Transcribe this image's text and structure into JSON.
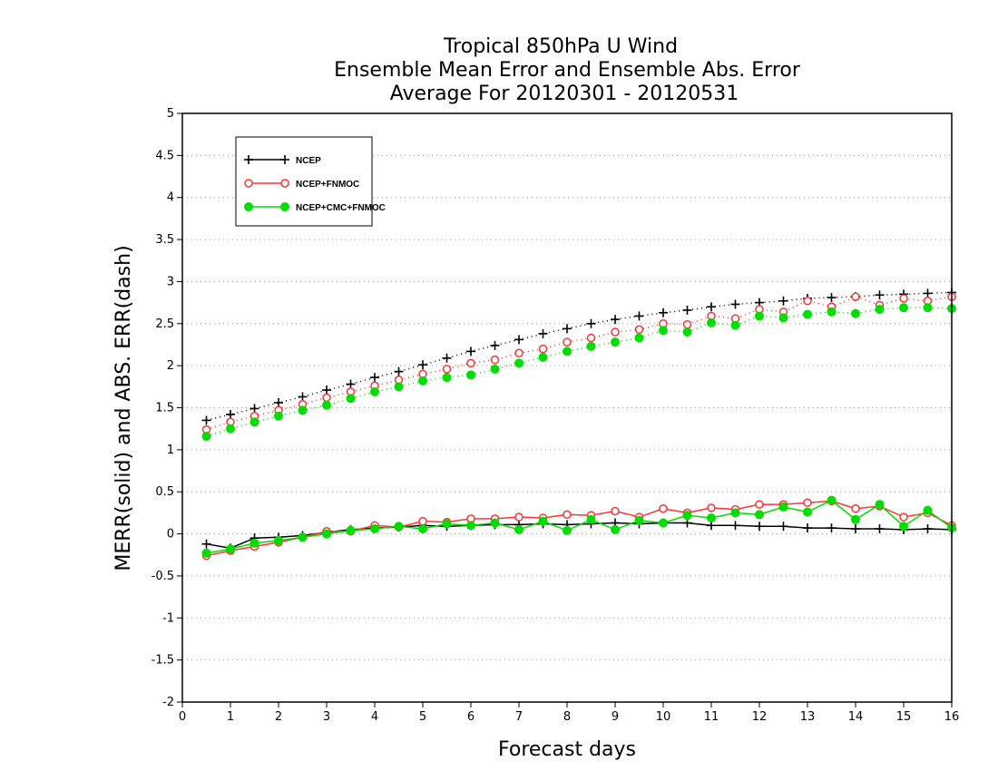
{
  "chart_data": {
    "type": "line",
    "title_lines": [
      "Tropical 850hPa U Wind",
      "Ensemble Mean Error and Ensemble Abs. Error",
      "Average For 20120301 - 20120531"
    ],
    "xlabel": "Forecast days",
    "ylabel": "MERR(solid) and ABS. ERR(dash)",
    "xlim": [
      0,
      16
    ],
    "ylim": [
      -2,
      5
    ],
    "x_ticks": [
      "0",
      "1",
      "2",
      "3",
      "4",
      "5",
      "6",
      "7",
      "8",
      "9",
      "10",
      "11",
      "12",
      "13",
      "14",
      "15",
      "16"
    ],
    "y_ticks": [
      "5",
      "4.5",
      "4",
      "3.5",
      "3",
      "2.5",
      "2",
      "1.5",
      "1",
      "0.5",
      "0",
      "-0.5",
      "-1",
      "-1.5",
      "-2"
    ],
    "grid": "horizontal dotted",
    "legend_position": "top-left",
    "x": [
      0.5,
      1,
      1.5,
      2,
      2.5,
      3,
      3.5,
      4,
      4.5,
      5,
      5.5,
      6,
      6.5,
      7,
      7.5,
      8,
      8.5,
      9,
      9.5,
      10,
      10.5,
      11,
      11.5,
      12,
      12.5,
      13,
      13.5,
      14,
      14.5,
      15,
      15.5,
      16
    ],
    "series": [
      {
        "name": "NCEP",
        "color": "#000000",
        "marker": "plus",
        "merr": [
          -0.12,
          -0.17,
          -0.05,
          -0.04,
          -0.02,
          0.02,
          0.05,
          0.07,
          0.08,
          0.1,
          0.09,
          0.1,
          0.11,
          0.11,
          0.12,
          0.11,
          0.12,
          0.13,
          0.12,
          0.13,
          0.13,
          0.1,
          0.1,
          0.09,
          0.09,
          0.07,
          0.07,
          0.06,
          0.06,
          0.05,
          0.06,
          0.05
        ],
        "abs_err": [
          1.35,
          1.42,
          1.49,
          1.56,
          1.63,
          1.71,
          1.78,
          1.86,
          1.93,
          2.01,
          2.09,
          2.17,
          2.24,
          2.31,
          2.38,
          2.44,
          2.5,
          2.55,
          2.59,
          2.63,
          2.66,
          2.7,
          2.73,
          2.75,
          2.77,
          2.8,
          2.81,
          2.82,
          2.84,
          2.85,
          2.86,
          2.87
        ]
      },
      {
        "name": "NCEP+FNMOC",
        "color": "#ff3333",
        "marker": "open-circle",
        "merr": [
          -0.26,
          -0.2,
          -0.15,
          -0.1,
          -0.04,
          0.03,
          0.03,
          0.1,
          0.08,
          0.15,
          0.14,
          0.18,
          0.18,
          0.2,
          0.19,
          0.23,
          0.22,
          0.27,
          0.2,
          0.3,
          0.25,
          0.31,
          0.29,
          0.35,
          0.35,
          0.37,
          0.39,
          0.3,
          0.33,
          0.2,
          0.25,
          0.1
        ],
        "abs_err": [
          1.24,
          1.33,
          1.4,
          1.47,
          1.54,
          1.62,
          1.69,
          1.76,
          1.83,
          1.9,
          1.96,
          2.03,
          2.07,
          2.15,
          2.2,
          2.28,
          2.33,
          2.4,
          2.43,
          2.5,
          2.49,
          2.59,
          2.56,
          2.67,
          2.64,
          2.77,
          2.7,
          2.82,
          2.72,
          2.8,
          2.77,
          2.82
        ]
      },
      {
        "name": "NCEP+CMC+FNMOC",
        "color": "#00dd00",
        "marker": "filled-circle",
        "merr": [
          -0.23,
          -0.18,
          -0.11,
          -0.08,
          -0.04,
          0.0,
          0.04,
          0.06,
          0.09,
          0.06,
          0.12,
          0.1,
          0.13,
          0.05,
          0.15,
          0.04,
          0.17,
          0.05,
          0.16,
          0.13,
          0.22,
          0.19,
          0.25,
          0.23,
          0.32,
          0.26,
          0.4,
          0.17,
          0.35,
          0.09,
          0.28,
          0.07
        ],
        "abs_err": [
          1.16,
          1.25,
          1.33,
          1.4,
          1.47,
          1.53,
          1.61,
          1.69,
          1.75,
          1.82,
          1.86,
          1.89,
          1.96,
          2.03,
          2.1,
          2.17,
          2.23,
          2.28,
          2.33,
          2.42,
          2.4,
          2.51,
          2.48,
          2.59,
          2.57,
          2.61,
          2.64,
          2.62,
          2.67,
          2.69,
          2.69,
          2.68
        ]
      }
    ]
  }
}
